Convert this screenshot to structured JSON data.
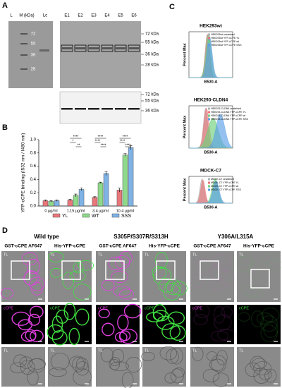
{
  "panel_labels": [
    "A",
    "B",
    "C",
    "D"
  ],
  "panel_a": {
    "lanes_left": [
      "L",
      "M (kDa)",
      "Lc"
    ],
    "marker_left": [
      "72",
      "55",
      "36",
      "28"
    ],
    "lanes_right": [
      "E1",
      "E2",
      "E3",
      "E4",
      "E5",
      "E6"
    ],
    "marker_right_top": [
      "72 kDa",
      "55 kDa",
      "36 kDa",
      "28 kDa"
    ],
    "marker_right_bottom": [
      "72 kDa",
      "55 kDa",
      "36 kDa"
    ]
  },
  "chart_data": {
    "type": "bar",
    "ylabel": "YFP-cCPE binding (I532 nm / I480 nm)",
    "categories": [
      "0 µg/ml",
      "1.15 µg/ml",
      "3.4 µg/ml",
      "10.4 µg/ml"
    ],
    "series": [
      {
        "name": "YL",
        "color": "#e8777a",
        "values": [
          0.08,
          0.09,
          0.13,
          0.24
        ],
        "errors": [
          0.01,
          0.01,
          0.01,
          0.03
        ]
      },
      {
        "name": "WT",
        "color": "#8fd98b",
        "values": [
          0.07,
          0.16,
          0.35,
          0.77
        ],
        "errors": [
          0.01,
          0.02,
          0.01,
          0.02
        ]
      },
      {
        "name": "SSS",
        "color": "#7fb2e5",
        "values": [
          0.08,
          0.25,
          0.49,
          0.88
        ],
        "errors": [
          0.01,
          0.02,
          0.03,
          0.03
        ]
      }
    ],
    "ylim": [
      0,
      1.0
    ],
    "yticks": [
      {
        "value": 0,
        "label": "0.0"
      },
      0.2,
      0.4,
      0.6,
      0.8,
      {
        "value": 1,
        "label": "1.0"
      }
    ],
    "annotations": [
      "****",
      "*",
      "**",
      "****",
      "****",
      "****",
      "****",
      "****",
      "****"
    ],
    "legend": "bottom"
  },
  "panel_c": {
    "plots": [
      {
        "title": "HEK293wt",
        "ylabel": "Percent Max",
        "xlabel": "B530-A",
        "legend": [
          "HEK293wt unstained",
          "HEK293wt YFP-cCPE YL",
          "HEK293wt YFP-cCPE wt",
          "HEK293wt YFP-cCPE SSS"
        ]
      },
      {
        "title": "HEK293-CLDN4",
        "ylabel": "Percent Max",
        "xlabel": "B530-A",
        "legend": [
          "HEK293-CLDN4 unstained",
          "HEK293-CLDN4 YFP-cCPE YL",
          "HEK293-CLDN4 YFP-cCPE wt",
          "HEK293-CLDN4 YFP-cCPE SSS"
        ]
      },
      {
        "title": "MDCK-C7",
        "ylabel": "Percent Max",
        "xlabel": "B530-A",
        "legend": [
          "MDCK-C7 unstained",
          "MDCK-C7 YFP-cCPE YL",
          "MDCK-C7 YFP-cCPE wt",
          "MDCK-C7 YFP-cCPE SSS"
        ]
      }
    ]
  },
  "panel_d": {
    "columns": [
      {
        "title": "Wild type",
        "subtitles": [
          "GST-cCPE AF647",
          "His-YFP-cCPE"
        ]
      },
      {
        "title": "S305P/S307R/S313H",
        "subtitles": [
          "GST-cCPE AF647",
          "His-YFP-cCPE"
        ]
      },
      {
        "title": "Y306A/L315A",
        "subtitles": [
          "GST-cCPE AF647",
          "His-YFP-cCPE"
        ]
      }
    ],
    "channel_labels": [
      "TL",
      "cCPE"
    ]
  }
}
